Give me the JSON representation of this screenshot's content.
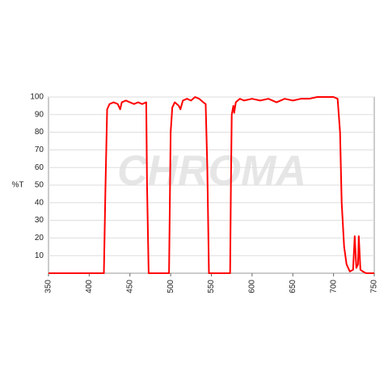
{
  "chart_data": {
    "type": "line",
    "y_label": "%T",
    "watermark": "CHROMA",
    "x": [
      350,
      418,
      420,
      422,
      425,
      430,
      435,
      438,
      440,
      445,
      450,
      455,
      460,
      465,
      470,
      471,
      473,
      498,
      500,
      502,
      505,
      510,
      512,
      515,
      520,
      525,
      530,
      535,
      540,
      543,
      545,
      547,
      573,
      574,
      575,
      577,
      578,
      580,
      585,
      590,
      600,
      610,
      620,
      630,
      640,
      650,
      660,
      670,
      680,
      690,
      700,
      705,
      708,
      710,
      713,
      716,
      720,
      724,
      726,
      728,
      730,
      731,
      733,
      736,
      740,
      750
    ],
    "series": [
      {
        "color": "#ff0000",
        "values": [
          0,
          0,
          50,
          93,
          96,
          97,
          96,
          93,
          97,
          98,
          97,
          96,
          97,
          96,
          97,
          50,
          0,
          0,
          80,
          94,
          97,
          95,
          93,
          98,
          99,
          98,
          100,
          99,
          97,
          96,
          60,
          0,
          0,
          50,
          90,
          95,
          91,
          97,
          99,
          98,
          99,
          98,
          99,
          97,
          99,
          98,
          99,
          99,
          100,
          100,
          100,
          99,
          80,
          40,
          15,
          5,
          1,
          2,
          21,
          3,
          5,
          21,
          2,
          1,
          0,
          0
        ]
      }
    ],
    "xlim": [
      350,
      750
    ],
    "ylim": [
      0,
      100
    ],
    "xticks": [
      350,
      400,
      450,
      500,
      550,
      600,
      650,
      700,
      750
    ],
    "yticks": [
      10,
      20,
      30,
      40,
      50,
      60,
      70,
      80,
      90,
      100
    ],
    "grid": true
  }
}
